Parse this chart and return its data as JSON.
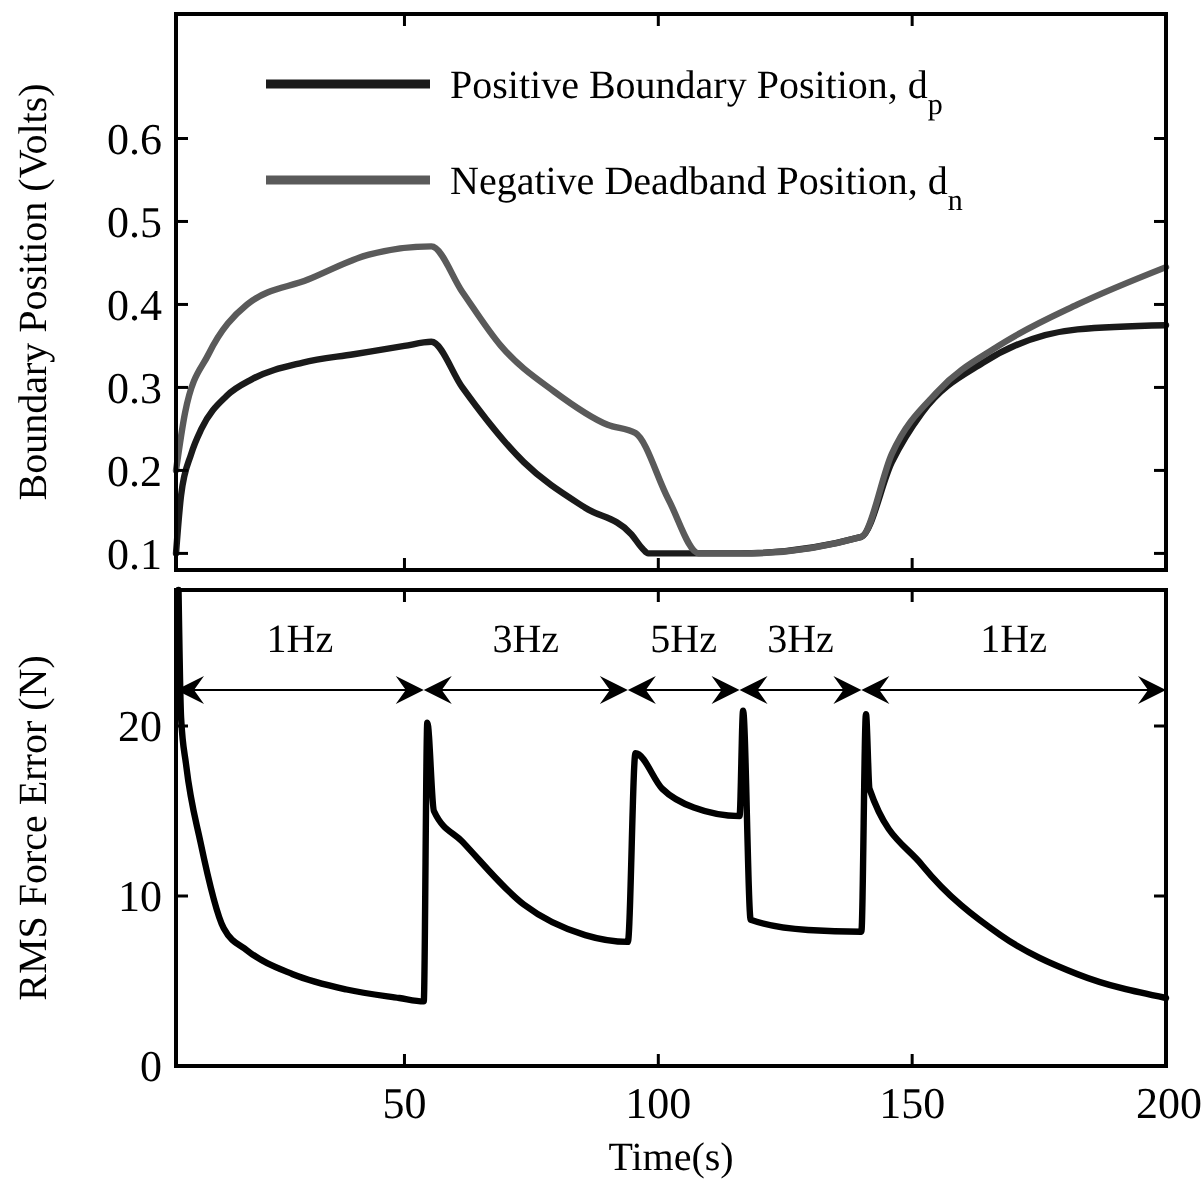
{
  "chart_data": [
    {
      "type": "line",
      "ylabel": "Boundary Position (Volts)",
      "xlim": [
        5,
        200
      ],
      "xticks": [
        50,
        100,
        150,
        200
      ],
      "ylim": [
        0.08,
        0.75
      ],
      "yticks": [
        0.1,
        0.2,
        0.3,
        0.4,
        0.5,
        0.6
      ],
      "tick_labels": "y",
      "legend": "top",
      "grid": false,
      "line_style": "solid",
      "series": [
        {
          "name": "Positive Boundary Position, d$_{p}$",
          "color": "#1a1a1a",
          "x": [
            5,
            6,
            8,
            10,
            15,
            20,
            30,
            40,
            50,
            55.3,
            61.4,
            73.5,
            85.6,
            94.7,
            97,
            98,
            116,
            140,
            146,
            152,
            164,
            182.6,
            200
          ],
          "values": [
            0.1,
            0.17,
            0.22,
            0.25,
            0.29,
            0.31,
            0.33,
            0.34,
            0.35,
            0.355,
            0.3,
            0.21,
            0.155,
            0.123,
            0.105,
            0.1,
            0.1,
            0.12,
            0.21,
            0.27,
            0.33,
            0.37,
            0.375
          ]
        },
        {
          "name": "Negative Deadband Position, d$_{n}$",
          "color": "#5a5a5a",
          "x": [
            5,
            6.8,
            11.4,
            19,
            31,
            43,
            55.3,
            61.4,
            69,
            79.5,
            90,
            95.5,
            102,
            108,
            117,
            140,
            146,
            155,
            167,
            182.6,
            200
          ],
          "values": [
            0.2,
            0.27,
            0.34,
            0.4,
            0.43,
            0.46,
            0.47,
            0.415,
            0.35,
            0.295,
            0.255,
            0.245,
            0.165,
            0.1,
            0.1,
            0.12,
            0.22,
            0.295,
            0.35,
            0.4,
            0.445
          ]
        }
      ]
    },
    {
      "type": "line",
      "xlabel": "Time(s)",
      "ylabel": "RMS Force Error (N)",
      "xlim": [
        5,
        200
      ],
      "xticks": [
        50,
        100,
        150,
        200
      ],
      "ylim": [
        0,
        28
      ],
      "yticks": [
        0,
        10,
        20
      ],
      "grid": false,
      "legend": false,
      "line_style": "solid",
      "annotations": [
        "1Hz",
        "3Hz",
        "5Hz",
        "3Hz",
        "1Hz"
      ],
      "series": [
        {
          "color": "#000000",
          "x": [
            5.5,
            6,
            7,
            9.8,
            14.4,
            19,
            28,
            38.6,
            49,
            53.8,
            54.5,
            55.8,
            61.4,
            73.5,
            85.6,
            94,
            95.5,
            100.8,
            107,
            116,
            116.7,
            118.2,
            129.5,
            140,
            140.9,
            141.6,
            152,
            167.4,
            182.6,
            200
          ],
          "values": [
            28,
            20.5,
            17.7,
            13.2,
            8.1,
            6.8,
            5.4,
            4.5,
            4,
            3.8,
            20.2,
            15,
            13.2,
            9.5,
            7.7,
            7.3,
            18.4,
            16.3,
            15.2,
            14.7,
            20.9,
            8.6,
            8,
            7.9,
            20.7,
            16.3,
            11.8,
            7.7,
            5.4,
            4
          ]
        }
      ]
    }
  ]
}
